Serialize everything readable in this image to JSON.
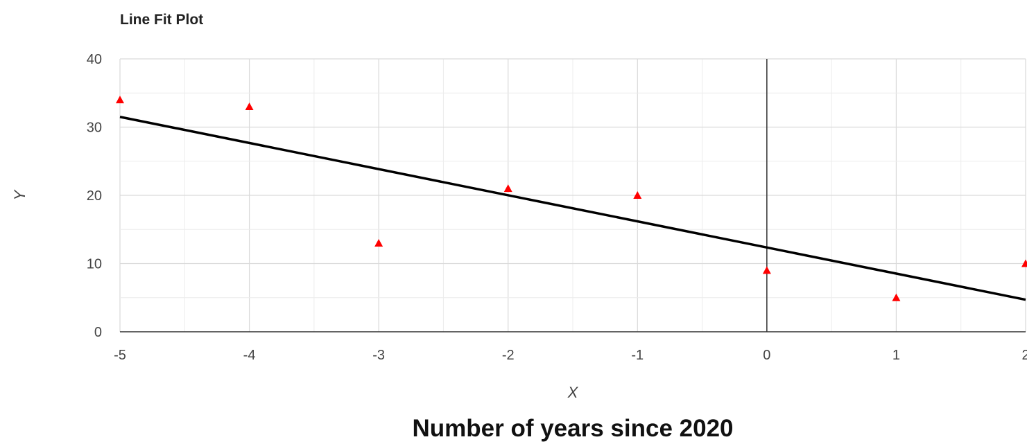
{
  "chart_data": {
    "type": "scatter",
    "title": "Line Fit Plot",
    "xlabel": "X",
    "ylabel": "Y",
    "caption": "Number of years since 2020",
    "xlim": [
      -5,
      2
    ],
    "ylim": [
      0,
      40
    ],
    "x_ticks": [
      -5,
      -4,
      -3,
      -2,
      -1,
      0,
      1,
      2
    ],
    "y_ticks": [
      0,
      10,
      20,
      30,
      40
    ],
    "grid": true,
    "points": [
      {
        "x": -5,
        "y": 34
      },
      {
        "x": -4,
        "y": 33
      },
      {
        "x": -3,
        "y": 13
      },
      {
        "x": -2,
        "y": 21
      },
      {
        "x": -1,
        "y": 20
      },
      {
        "x": 0,
        "y": 9
      },
      {
        "x": 1,
        "y": 5
      },
      {
        "x": 2,
        "y": 10
      }
    ],
    "fit_line": {
      "x": [
        -5,
        2
      ],
      "y": [
        31.5,
        4.7
      ]
    },
    "colors": {
      "points": "#ff0000",
      "fit_line": "#000000",
      "grid": "#dddddd",
      "axis": "#333333"
    }
  }
}
